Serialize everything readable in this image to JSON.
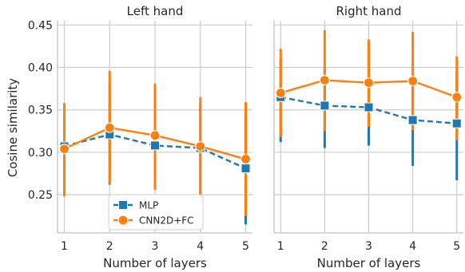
{
  "chart_data": [
    {
      "type": "line",
      "title": "Left hand",
      "xlabel": "Number of layers",
      "ylabel": "Cosine similarity",
      "x": [
        1,
        2,
        3,
        4,
        5
      ],
      "xticks": [
        "1",
        "2",
        "3",
        "4",
        "5"
      ],
      "xlim": [
        0.85,
        5.15
      ],
      "ylim": [
        0.205,
        0.455
      ],
      "yticks": [
        "0.25",
        "0.30",
        "0.35",
        "0.40",
        "0.45"
      ],
      "ytick_values": [
        0.25,
        0.3,
        0.35,
        0.4,
        0.45
      ],
      "grid": true,
      "legend": "lower-center",
      "series": [
        {
          "name": "MLP",
          "color": "#1f77b4",
          "line_style": "dashed",
          "marker": "square",
          "values": [
            0.307,
            0.321,
            0.308,
            0.305,
            0.281
          ],
          "err_low": [
            0.285,
            0.262,
            0.256,
            0.251,
            0.215
          ],
          "err_high": [
            0.32,
            0.378,
            0.365,
            0.358,
            0.35
          ]
        },
        {
          "name": "CNN2D+FC",
          "color": "#ff7f0e",
          "line_style": "solid",
          "marker": "circle",
          "values": [
            0.304,
            0.329,
            0.32,
            0.307,
            0.292
          ],
          "err_low": [
            0.248,
            0.263,
            0.256,
            0.249,
            0.225
          ],
          "err_high": [
            0.358,
            0.396,
            0.381,
            0.365,
            0.359
          ]
        }
      ]
    },
    {
      "type": "line",
      "title": "Right hand",
      "xlabel": "Number of layers",
      "ylabel": "",
      "x": [
        1,
        2,
        3,
        4,
        5
      ],
      "xticks": [
        "1",
        "2",
        "3",
        "4",
        "5"
      ],
      "xlim": [
        0.85,
        5.15
      ],
      "ylim": [
        0.205,
        0.455
      ],
      "grid": true,
      "series": [
        {
          "name": "MLP",
          "color": "#1f77b4",
          "line_style": "dashed",
          "marker": "square",
          "values": [
            0.365,
            0.355,
            0.353,
            0.338,
            0.334
          ],
          "err_low": [
            0.312,
            0.305,
            0.308,
            0.284,
            0.267
          ],
          "err_high": [
            0.41,
            0.4,
            0.395,
            0.39,
            0.395
          ]
        },
        {
          "name": "CNN2D+FC",
          "color": "#ff7f0e",
          "line_style": "solid",
          "marker": "circle",
          "values": [
            0.37,
            0.385,
            0.382,
            0.384,
            0.365
          ],
          "err_low": [
            0.318,
            0.325,
            0.33,
            0.326,
            0.314
          ],
          "err_high": [
            0.422,
            0.444,
            0.433,
            0.442,
            0.413
          ]
        }
      ]
    }
  ]
}
